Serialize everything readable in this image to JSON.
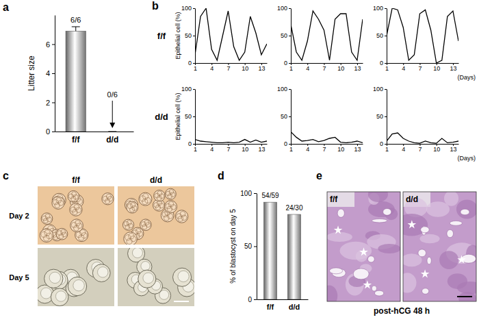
{
  "chart_data": [
    {
      "type": "bar",
      "categories": [
        "f/f",
        "d/d"
      ],
      "values": [
        6.9,
        0
      ],
      "errors": [
        0.3,
        0
      ],
      "annotations": [
        "6/6",
        "0/6"
      ],
      "ylabel": "Litter size",
      "ylim": [
        0,
        8
      ],
      "yticks": [
        0,
        2,
        4,
        6
      ],
      "color": "#9a9a9a"
    },
    {
      "type": "line",
      "ylabel": "Epithelial cell (%)",
      "x": [
        1,
        2,
        3,
        4,
        5,
        6,
        7,
        8,
        9,
        10,
        11,
        12,
        13,
        14
      ],
      "values": [
        15,
        85,
        100,
        25,
        5,
        50,
        95,
        30,
        5,
        20,
        85,
        55,
        15,
        35
      ],
      "xlim": [
        1,
        14
      ],
      "xticks": [
        1,
        4,
        7,
        10,
        13
      ],
      "ylim": [
        0,
        100
      ],
      "yticks": [
        0,
        50,
        100
      ],
      "color": "#000000"
    },
    {
      "type": "line",
      "x": [
        1,
        2,
        3,
        4,
        5,
        6,
        7,
        8,
        9,
        10,
        11,
        12,
        13,
        14
      ],
      "values": [
        70,
        20,
        5,
        40,
        95,
        80,
        60,
        5,
        80,
        90,
        90,
        20,
        5,
        80
      ],
      "xlim": [
        1,
        14
      ],
      "xticks": [
        1,
        4,
        7,
        10,
        13
      ],
      "ylim": [
        0,
        100
      ],
      "yticks": [
        0,
        50,
        100
      ],
      "color": "#000000"
    },
    {
      "type": "line",
      "xlabel": "(Days)",
      "x": [
        1,
        2,
        3,
        4,
        5,
        6,
        7,
        8,
        9,
        10,
        11,
        12,
        13,
        14
      ],
      "values": [
        50,
        100,
        97,
        65,
        5,
        15,
        90,
        97,
        60,
        0,
        5,
        85,
        95,
        40
      ],
      "xlim": [
        1,
        14
      ],
      "xticks": [
        1,
        4,
        7,
        10,
        13
      ],
      "ylim": [
        0,
        100
      ],
      "yticks": [
        0,
        50,
        100
      ],
      "color": "#000000"
    },
    {
      "type": "line",
      "ylabel": "Epithelial cell (%)",
      "x": [
        1,
        2,
        3,
        4,
        5,
        6,
        7,
        8,
        9,
        10,
        11,
        12,
        13,
        14
      ],
      "values": [
        8,
        5,
        4,
        3,
        2,
        2,
        3,
        2,
        3,
        8,
        3,
        7,
        3,
        5
      ],
      "xlim": [
        1,
        14
      ],
      "xticks": [
        1,
        4,
        7,
        10,
        13
      ],
      "ylim": [
        0,
        100
      ],
      "yticks": [
        0,
        50,
        100
      ],
      "color": "#000000"
    },
    {
      "type": "line",
      "x": [
        1,
        2,
        3,
        4,
        5,
        6,
        7,
        8,
        9,
        10,
        11,
        12,
        13,
        14
      ],
      "values": [
        22,
        12,
        5,
        6,
        8,
        4,
        6,
        10,
        12,
        3,
        2,
        3,
        5,
        2
      ],
      "xlim": [
        1,
        14
      ],
      "xticks": [
        1,
        4,
        7,
        10,
        13
      ],
      "ylim": [
        0,
        100
      ],
      "yticks": [
        0,
        50,
        100
      ],
      "color": "#000000"
    },
    {
      "type": "line",
      "xlabel": "(Days)",
      "x": [
        1,
        2,
        3,
        4,
        5,
        6,
        7,
        8,
        9,
        10,
        11,
        12,
        13,
        14
      ],
      "values": [
        5,
        18,
        20,
        10,
        5,
        2,
        1,
        5,
        2,
        1,
        10,
        2,
        3,
        5
      ],
      "xlim": [
        1,
        14
      ],
      "xticks": [
        1,
        4,
        7,
        10,
        13
      ],
      "ylim": [
        0,
        100
      ],
      "yticks": [
        0,
        50,
        100
      ],
      "color": "#000000"
    },
    {
      "type": "bar",
      "categories": [
        "f/f",
        "d/d"
      ],
      "values": [
        91.5,
        80
      ],
      "annotations": [
        "54/59",
        "24/30"
      ],
      "ylabel": "% of blastocyst on day 5",
      "ylim": [
        0,
        100
      ],
      "yticks": [
        0,
        50,
        100
      ],
      "color": "#9a9a9a"
    }
  ],
  "panels": {
    "labels": [
      "a",
      "b",
      "c",
      "d",
      "e"
    ],
    "b_rows": [
      "f/f",
      "d/d"
    ],
    "c": {
      "columns": [
        "f/f",
        "d/d"
      ],
      "rows": [
        "Day 2",
        "Day 5"
      ]
    },
    "e": {
      "columns": [
        "f/f",
        "d/d"
      ],
      "caption": "post-hCG 48 h"
    }
  }
}
